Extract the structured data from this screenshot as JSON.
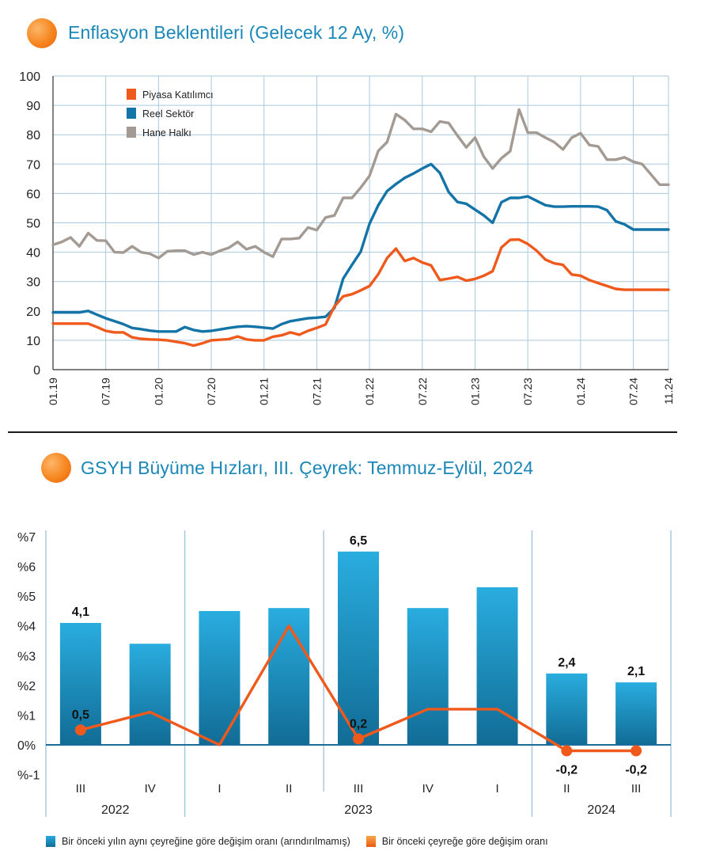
{
  "chart_data": [
    {
      "type": "line",
      "title": "Enflasyon Beklentileri (Gelecek 12 Ay, %)",
      "ylim": [
        0,
        100
      ],
      "y_ticks": [
        "0",
        "10",
        "20",
        "30",
        "40",
        "50",
        "60",
        "70",
        "80",
        "90",
        "100"
      ],
      "x_tick_labels": [
        "01.19",
        "07.19",
        "01.20",
        "07.20",
        "01.21",
        "07.21",
        "01.22",
        "07.22",
        "01.23",
        "07.23",
        "01.24",
        "07.24",
        "11.24"
      ],
      "grid": true,
      "legend_position": "top-left",
      "x_months": [
        "01.19",
        "02.19",
        "03.19",
        "04.19",
        "05.19",
        "06.19",
        "07.19",
        "08.19",
        "09.19",
        "10.19",
        "11.19",
        "12.19",
        "01.20",
        "02.20",
        "03.20",
        "04.20",
        "05.20",
        "06.20",
        "07.20",
        "08.20",
        "09.20",
        "10.20",
        "11.20",
        "12.20",
        "01.21",
        "02.21",
        "03.21",
        "04.21",
        "05.21",
        "06.21",
        "07.21",
        "08.21",
        "09.21",
        "10.21",
        "11.21",
        "12.21",
        "01.22",
        "02.22",
        "03.22",
        "04.22",
        "05.22",
        "06.22",
        "07.22",
        "08.22",
        "09.22",
        "10.22",
        "11.22",
        "12.22",
        "01.23",
        "02.23",
        "03.23",
        "04.23",
        "05.23",
        "06.23",
        "07.23",
        "08.23",
        "09.23",
        "10.23",
        "11.23",
        "12.23",
        "01.24",
        "02.24",
        "03.24",
        "04.24",
        "05.24",
        "06.24",
        "07.24",
        "08.24",
        "09.24",
        "10.24",
        "11.24"
      ],
      "series": [
        {
          "name": "Piyasa Katılımcı",
          "color": "#ef5a1c",
          "values": [
            15.7,
            15.7,
            15.7,
            15.7,
            15.7,
            14.5,
            13.2,
            12.7,
            12.7,
            11.0,
            10.5,
            10.3,
            10.2,
            10.0,
            9.5,
            9.0,
            8.2,
            9.0,
            10.0,
            10.2,
            10.4,
            11.3,
            10.3,
            10.0,
            10.0,
            11.2,
            11.7,
            12.7,
            11.9,
            13.2,
            14.2,
            15.4,
            21.5,
            25.0,
            25.7,
            27.0,
            28.5,
            32.5,
            38.0,
            41.2,
            37.0,
            38.0,
            36.5,
            35.5,
            30.5,
            31.0,
            31.6,
            30.3,
            30.9,
            32.0,
            33.5,
            41.6,
            44.2,
            44.3,
            42.8,
            40.5,
            37.5,
            36.2,
            35.7,
            32.4,
            32.0,
            30.5,
            29.5,
            28.5,
            27.5,
            27.2,
            27.2,
            27.2,
            27.2,
            27.2,
            27.2
          ]
        },
        {
          "name": "Reel Sektör",
          "color": "#1474a8",
          "values": [
            19.5,
            19.5,
            19.5,
            19.5,
            20.0,
            18.7,
            17.5,
            16.5,
            15.5,
            14.2,
            13.8,
            13.3,
            13.0,
            13.0,
            13.0,
            14.5,
            13.5,
            13.0,
            13.2,
            13.7,
            14.2,
            14.6,
            14.8,
            14.6,
            14.3,
            14.0,
            15.5,
            16.5,
            17.0,
            17.5,
            17.7,
            18.0,
            21.0,
            31.0,
            35.7,
            40.2,
            49.7,
            56.0,
            60.8,
            63.2,
            65.3,
            66.8,
            68.5,
            70.0,
            67.0,
            60.5,
            57.1,
            56.5,
            54.5,
            52.5,
            50.0,
            57.0,
            58.5,
            58.5,
            59.0,
            57.5,
            56.0,
            55.5,
            55.5,
            55.6,
            55.6,
            55.6,
            55.5,
            54.3,
            50.5,
            49.5,
            47.7,
            47.7,
            47.7,
            47.7,
            47.7
          ]
        },
        {
          "name": "Hane Halkı",
          "color": "#a39a93",
          "values": [
            42.5,
            43.5,
            45.0,
            42.0,
            46.5,
            44.0,
            43.9,
            40.0,
            39.9,
            42.0,
            40.0,
            39.5,
            38.0,
            40.3,
            40.5,
            40.5,
            39.2,
            40.0,
            39.2,
            40.5,
            41.5,
            43.5,
            41.0,
            42.0,
            40.0,
            38.5,
            44.5,
            44.5,
            44.8,
            48.4,
            47.5,
            51.8,
            52.5,
            58.5,
            58.5,
            62.0,
            66.0,
            74.5,
            77.5,
            87.0,
            85.0,
            82.0,
            82.0,
            81.0,
            84.5,
            84.0,
            79.7,
            75.7,
            79.0,
            72.5,
            68.5,
            72.0,
            74.4,
            88.6,
            80.7,
            80.7,
            79.0,
            77.5,
            75.0,
            79.0,
            80.5,
            76.5,
            76.0,
            71.5,
            71.5,
            72.3,
            70.8,
            70.0,
            66.5,
            63.0,
            63.0
          ]
        }
      ]
    },
    {
      "type": "bar",
      "title": "GSYH Büyüme Hızları, III. Çeyrek: Temmuz-Eylül, 2024",
      "ylim": [
        -1,
        7
      ],
      "y_ticks": [
        "%-1",
        "0%",
        "%1",
        "%2",
        "%3",
        "%4",
        "%5",
        "%6",
        "%7"
      ],
      "categories": [
        "III",
        "IV",
        "I",
        "II",
        "III",
        "IV",
        "I",
        "II",
        "III"
      ],
      "years": [
        "2022",
        "2023",
        "2024"
      ],
      "series": [
        {
          "name": "Bir önceki yılın aynı çeyreğine göre değişim oranı (arındırılmamış)",
          "color": "#1ba3db",
          "values": [
            4.1,
            3.4,
            4.5,
            4.6,
            6.5,
            4.6,
            5.3,
            2.4,
            2.1
          ]
        },
        {
          "name": "Bir önceki çeyreğe göre değişim oranı",
          "color": "#ef5a1c",
          "values": [
            0.5,
            1.1,
            0.0,
            4.0,
            0.2,
            1.2,
            1.2,
            -0.2,
            -0.2
          ]
        }
      ],
      "bar_value_labels": [
        "4,1",
        "",
        "",
        "",
        "6,5",
        "",
        "",
        "2,4",
        "2,1"
      ],
      "line_value_labels": [
        "0,5",
        "",
        "",
        "",
        "0,2",
        "",
        "",
        "-0,2",
        "-0,2"
      ]
    }
  ]
}
